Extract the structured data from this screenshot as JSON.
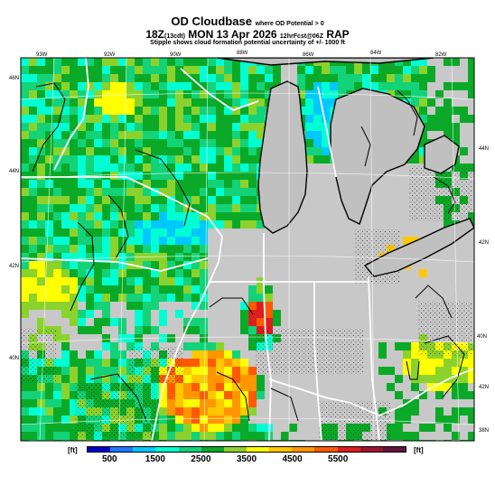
{
  "title": {
    "main": "OD Cloudbase",
    "note": "where OD Potential > 0",
    "line2_main": "18Z",
    "line2_local": "(13cdt)",
    "line2_date": "MON 13 Apr 2026",
    "line2_fcst": "12hrFcst@06Z",
    "line2_model": "RAP",
    "line3": "Stipple shows cloud formation potential uncertainty of +/- 1000 ft"
  },
  "axes": {
    "lon_labels": [
      "93W",
      "92W",
      "90W",
      "88W",
      "86W",
      "84W",
      "82W"
    ],
    "lat_labels_left": [
      "46N",
      "44N",
      "42N",
      "40N"
    ],
    "lat_labels_right": [
      "44N",
      "42N",
      "40N",
      "42N",
      "38N"
    ]
  },
  "legend": {
    "units_left": "[ft]",
    "units_right": "[ft]",
    "tick_labels": [
      "500",
      "1500",
      "2500",
      "3500",
      "4500",
      "5500"
    ],
    "colors": [
      "#0000c8",
      "#1e78ff",
      "#00c8ff",
      "#00ffd2",
      "#14d278",
      "#0aaa28",
      "#8cd22d",
      "#ffff00",
      "#ffc800",
      "#ff9600",
      "#ff5a00",
      "#dc1e1e",
      "#a0142d",
      "#64143c"
    ]
  },
  "map": {
    "background": "#c8c8c8",
    "lake_color": "#c0c0c0",
    "stipple": true
  }
}
